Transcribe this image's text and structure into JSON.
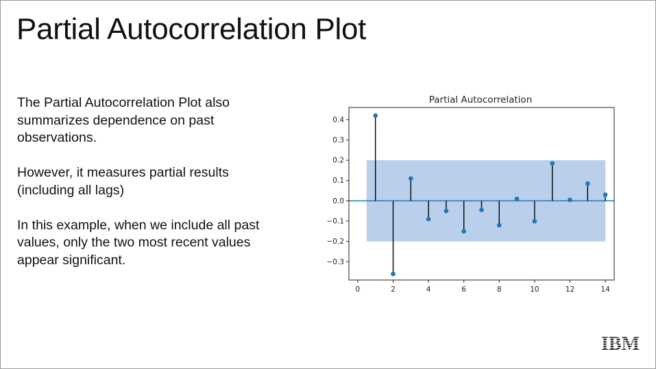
{
  "slide": {
    "title": "Partial Autocorrelation Plot",
    "paragraphs": [
      "The Partial Autocorrelation Plot also summarizes dependence on past observations.",
      "However, it measures partial results (including all lags)",
      "In this example, when we include all past values, only the two most recent values appear significant."
    ],
    "logo_text": "IBM"
  },
  "colors": {
    "marker": "#1f77b4",
    "stem": "#000000",
    "confidence_band": "#aec7e8",
    "zero_line": "#1f77b4"
  },
  "chart_data": {
    "type": "stem",
    "title": "Partial Autocorrelation",
    "xlabel": "",
    "ylabel": "",
    "x": [
      1,
      2,
      3,
      4,
      5,
      6,
      7,
      8,
      9,
      10,
      11,
      12,
      13,
      14
    ],
    "values": [
      0.42,
      -0.36,
      0.11,
      -0.09,
      -0.05,
      -0.15,
      -0.045,
      -0.12,
      0.01,
      -0.1,
      0.185,
      0.005,
      0.085,
      0.03
    ],
    "confidence_interval": [
      -0.2,
      0.2
    ],
    "xlim": [
      -0.5,
      14.5
    ],
    "ylim": [
      -0.39,
      0.46
    ],
    "xticks": [
      0,
      2,
      4,
      6,
      8,
      10,
      12,
      14
    ],
    "yticks": [
      -0.3,
      -0.2,
      -0.1,
      0.0,
      0.1,
      0.2,
      0.3,
      0.4
    ],
    "ytick_labels": [
      "−0.3",
      "−0.2",
      "−0.1",
      "0.0",
      "0.1",
      "0.2",
      "0.3",
      "0.4"
    ],
    "grid": false,
    "legend": "none"
  }
}
